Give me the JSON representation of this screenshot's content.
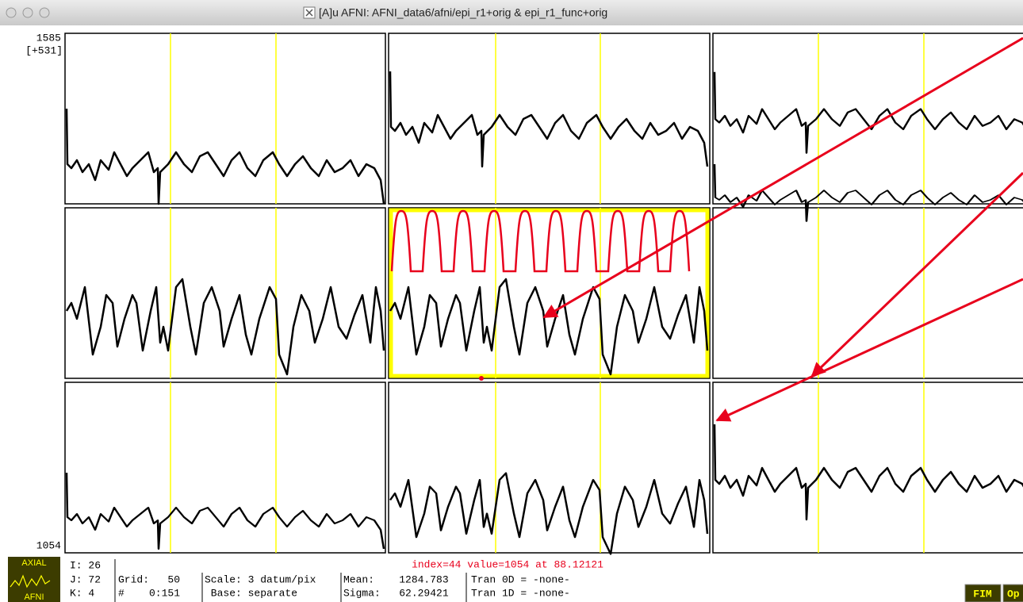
{
  "window": {
    "title": "[A]u AFNI: AFNI_data6/afni/epi_r1+orig & epi_r1_func+orig"
  },
  "graph": {
    "y_max": "1585",
    "y_range": "[+531]",
    "y_min": "1054",
    "status": "index=44 value=1054 at 88.12121"
  },
  "icon": {
    "top": "AXIAL",
    "bottom": "AFNI"
  },
  "info": {
    "i": "I: 26",
    "j": "J: 72",
    "k": "K: 4",
    "grid": "Grid:   50",
    "range": "#    0:151",
    "scale": "Scale: 3 datum/pix",
    "base": " Base: separate",
    "mean": "Mean:    1284.783",
    "sigma": "Sigma:   62.29421",
    "tran0d": "Tran 0D = -none-",
    "tran1d": "Tran 1D = -none-"
  },
  "buttons": [
    "FIM",
    "Op"
  ]
}
